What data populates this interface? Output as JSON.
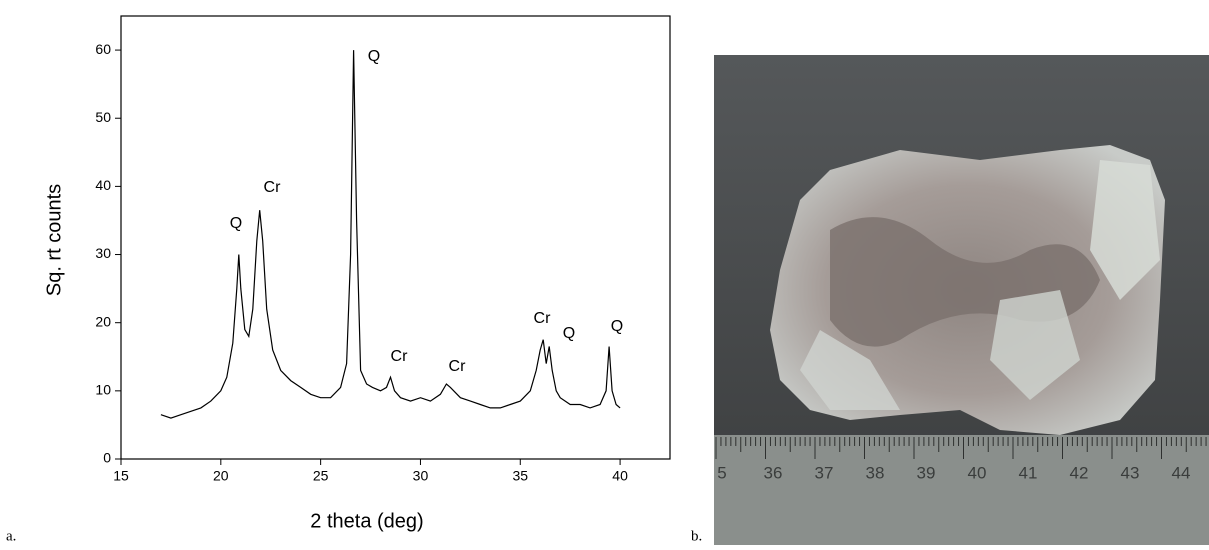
{
  "chart_data": {
    "type": "line",
    "x": [
      17,
      17.5,
      18,
      18.5,
      19,
      19.5,
      20,
      20.3,
      20.6,
      20.8,
      20.9,
      21.0,
      21.2,
      21.4,
      21.6,
      21.8,
      21.95,
      22.1,
      22.3,
      22.6,
      23,
      23.5,
      24,
      24.5,
      25,
      25.5,
      26,
      26.3,
      26.5,
      26.65,
      26.8,
      27,
      27.3,
      27.6,
      28,
      28.3,
      28.5,
      28.7,
      29,
      29.5,
      30,
      30.5,
      31,
      31.3,
      31.5,
      32,
      32.5,
      33,
      33.5,
      34,
      34.5,
      35,
      35.5,
      35.8,
      36,
      36.15,
      36.3,
      36.45,
      36.6,
      36.8,
      37,
      37.5,
      38,
      38.5,
      39,
      39.3,
      39.45,
      39.6,
      39.8,
      40
    ],
    "values": [
      6.5,
      6,
      6.5,
      7,
      7.5,
      8.5,
      10,
      12,
      17,
      25,
      30,
      25,
      19,
      18,
      22,
      32,
      36.5,
      32,
      22,
      16,
      13,
      11.5,
      10.5,
      9.5,
      9,
      9,
      10.5,
      14,
      30,
      60,
      35,
      13,
      11,
      10.5,
      10,
      10.5,
      12,
      10,
      9,
      8.5,
      9,
      8.5,
      9.5,
      11,
      10.5,
      9,
      8.5,
      8,
      7.5,
      7.5,
      8,
      8.5,
      10,
      13,
      16,
      17.5,
      14,
      16.5,
      13,
      10,
      9,
      8,
      8,
      7.5,
      8,
      10,
      16.5,
      10,
      8,
      7.5
    ],
    "color": "#000000",
    "xlabel": "2 theta (deg)",
    "ylabel": "Sq. rt counts",
    "xlim": [
      15,
      42.5
    ],
    "xticks": [
      15,
      20,
      25,
      30,
      35,
      40
    ],
    "ylim": [
      0,
      65
    ],
    "yticks": [
      0,
      10,
      20,
      30,
      40,
      50,
      60
    ],
    "annotations": [
      "Q",
      "Cr",
      "Q",
      "Cr",
      "Cr",
      "Cr",
      "Q",
      "Q"
    ]
  },
  "panel_labels": [
    "a.",
    "b."
  ],
  "photo": {
    "ruler_labels": [
      "5",
      "36",
      "37",
      "38",
      "39",
      "40",
      "41",
      "42",
      "43",
      "44"
    ]
  }
}
